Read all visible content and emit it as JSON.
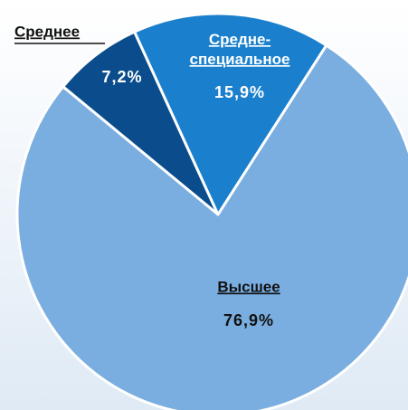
{
  "chart_data": {
    "type": "pie",
    "categories": [
      "Среднее",
      "Средне-специальное",
      "Высшее"
    ],
    "values": [
      7.2,
      15.9,
      76.9
    ],
    "value_labels": [
      "7,2%",
      "15,9%",
      "76,9%"
    ],
    "colors": [
      "#0b4d8c",
      "#1a7fcc",
      "#7aaee0"
    ]
  }
}
